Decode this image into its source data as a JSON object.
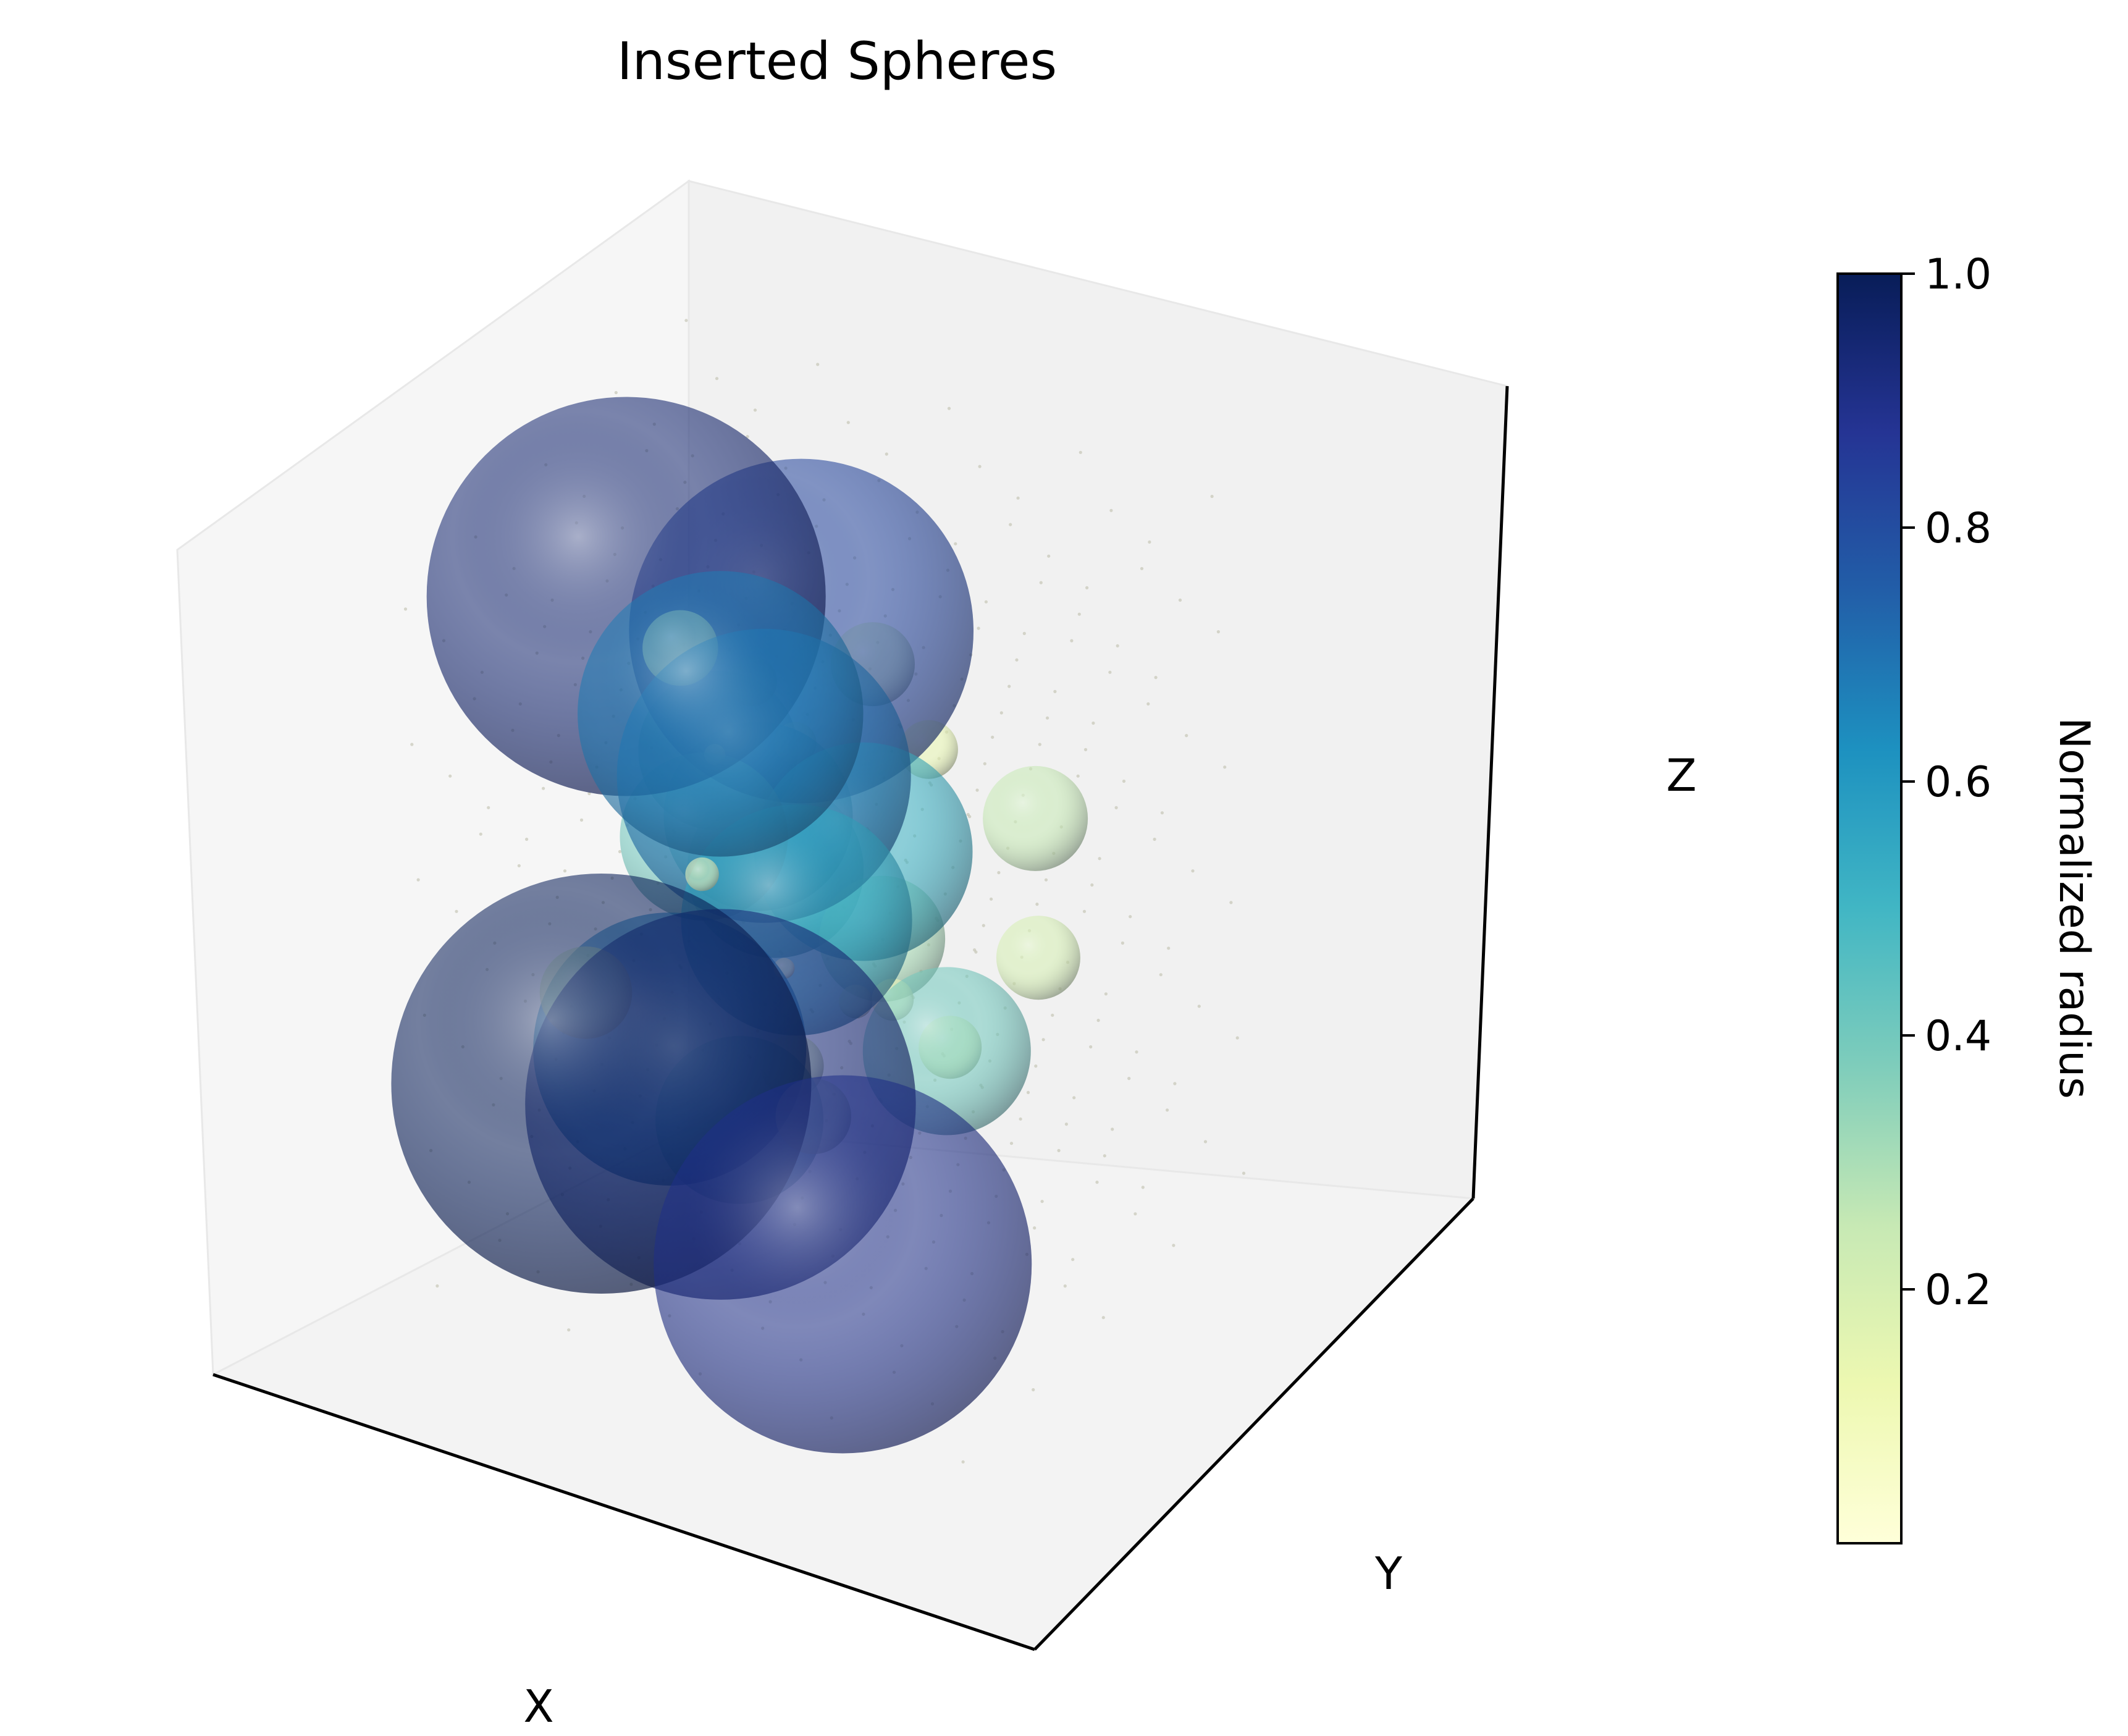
{
  "chart_data": {
    "type": "scatter",
    "subtype": "3d-sphere-scatter",
    "title": "Inserted Spheres",
    "xlabel": "X",
    "ylabel": "Y",
    "zlabel": "Z",
    "x_ticks_shown": false,
    "y_ticks_shown": false,
    "z_ticks_shown": false,
    "colormap": "YlGnBu",
    "colormap_stops": [
      "#ffffd9",
      "#edf8b1",
      "#c7e9b4",
      "#7fcdbb",
      "#41b6c4",
      "#1d91c0",
      "#225ea8",
      "#253494",
      "#081d58"
    ],
    "colorbar": {
      "label": "Normalized radius",
      "ticks": [
        0.2,
        0.4,
        0.6,
        0.8,
        1.0
      ],
      "tick_labels": [
        "0.2",
        "0.4",
        "0.6",
        "0.8",
        "1.0"
      ],
      "range": [
        0.0,
        1.0
      ],
      "placement": "right"
    },
    "note_points": "approximate sphere centers (x, y, z in normalized 0–1 box units) and normalized radius r",
    "spheres": [
      {
        "x": 0.25,
        "y": 0.15,
        "z": 0.3,
        "r": 1.0
      },
      {
        "x": 0.2,
        "y": 0.4,
        "z": 0.9,
        "r": 0.95
      },
      {
        "x": 0.45,
        "y": 0.2,
        "z": 0.3,
        "r": 0.93
      },
      {
        "x": 0.7,
        "y": 0.15,
        "z": 0.15,
        "r": 0.9
      },
      {
        "x": 0.45,
        "y": 0.55,
        "z": 0.85,
        "r": 0.82
      },
      {
        "x": 0.45,
        "y": 0.4,
        "z": 0.7,
        "r": 0.7
      },
      {
        "x": 0.4,
        "y": 0.35,
        "z": 0.8,
        "r": 0.68
      },
      {
        "x": 0.3,
        "y": 0.3,
        "z": 0.3,
        "r": 0.65
      },
      {
        "x": 0.5,
        "y": 0.4,
        "z": 0.5,
        "r": 0.55
      },
      {
        "x": 0.55,
        "y": 0.55,
        "z": 0.55,
        "r": 0.52
      },
      {
        "x": 0.35,
        "y": 0.55,
        "z": 0.55,
        "r": 0.45
      },
      {
        "x": 0.35,
        "y": 0.6,
        "z": 0.45,
        "r": 0.42
      },
      {
        "x": 0.3,
        "y": 0.45,
        "z": 0.55,
        "r": 0.4
      },
      {
        "x": 0.4,
        "y": 0.35,
        "z": 0.2,
        "r": 0.4
      },
      {
        "x": 0.75,
        "y": 0.45,
        "z": 0.35,
        "r": 0.4
      },
      {
        "x": 0.25,
        "y": 0.6,
        "z": 0.6,
        "r": 0.38
      },
      {
        "x": 0.55,
        "y": 0.6,
        "z": 0.4,
        "r": 0.3
      },
      {
        "x": 0.8,
        "y": 0.7,
        "z": 0.6,
        "r": 0.25
      },
      {
        "x": 0.2,
        "y": 0.2,
        "z": 0.4,
        "r": 0.22
      },
      {
        "x": 0.85,
        "y": 0.6,
        "z": 0.45,
        "r": 0.2
      },
      {
        "x": 0.5,
        "y": 0.7,
        "z": 0.75,
        "r": 0.2
      },
      {
        "x": 0.6,
        "y": 0.25,
        "z": 0.3,
        "r": 0.18
      },
      {
        "x": 0.3,
        "y": 0.4,
        "z": 0.85,
        "r": 0.18
      },
      {
        "x": 0.45,
        "y": 0.45,
        "z": 0.25,
        "r": 0.15
      },
      {
        "x": 0.7,
        "y": 0.55,
        "z": 0.3,
        "r": 0.15
      },
      {
        "x": 0.6,
        "y": 0.7,
        "z": 0.65,
        "r": 0.14
      },
      {
        "x": 0.35,
        "y": 0.55,
        "z": 0.75,
        "r": 0.12
      },
      {
        "x": 0.4,
        "y": 0.6,
        "z": 0.65,
        "r": 0.1
      },
      {
        "x": 0.65,
        "y": 0.45,
        "z": 0.4,
        "r": 0.1
      },
      {
        "x": 0.35,
        "y": 0.35,
        "z": 0.55,
        "r": 0.08
      },
      {
        "x": 0.55,
        "y": 0.5,
        "z": 0.35,
        "r": 0.08
      },
      {
        "x": 0.3,
        "y": 0.5,
        "z": 0.65,
        "r": 0.05
      },
      {
        "x": 0.5,
        "y": 0.35,
        "z": 0.45,
        "r": 0.05
      }
    ]
  }
}
